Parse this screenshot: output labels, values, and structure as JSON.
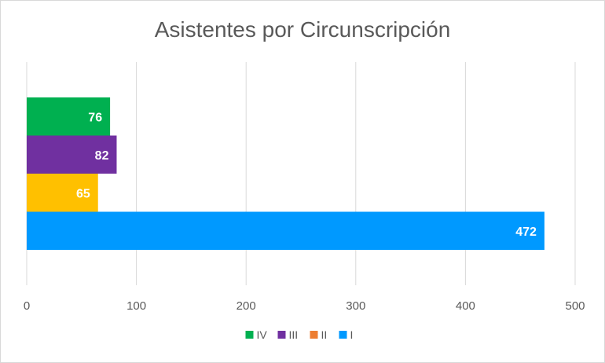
{
  "chart_data": {
    "type": "bar",
    "orientation": "horizontal",
    "title": "Asistentes por Circunscripción",
    "xlabel": "",
    "ylabel": "",
    "xlim": [
      0,
      500
    ],
    "x_ticks": [
      0,
      100,
      200,
      300,
      400,
      500
    ],
    "grid": "vertical",
    "legend_position": "bottom",
    "series": [
      {
        "name": "IV",
        "value": 76,
        "color": "#00b050"
      },
      {
        "name": "III",
        "value": 82,
        "color": "#7030a0"
      },
      {
        "name": "II",
        "value": 65,
        "color": "#ffc000",
        "legend_color": "#ed7d31"
      },
      {
        "name": "I",
        "value": 472,
        "color": "#0099ff"
      }
    ]
  }
}
